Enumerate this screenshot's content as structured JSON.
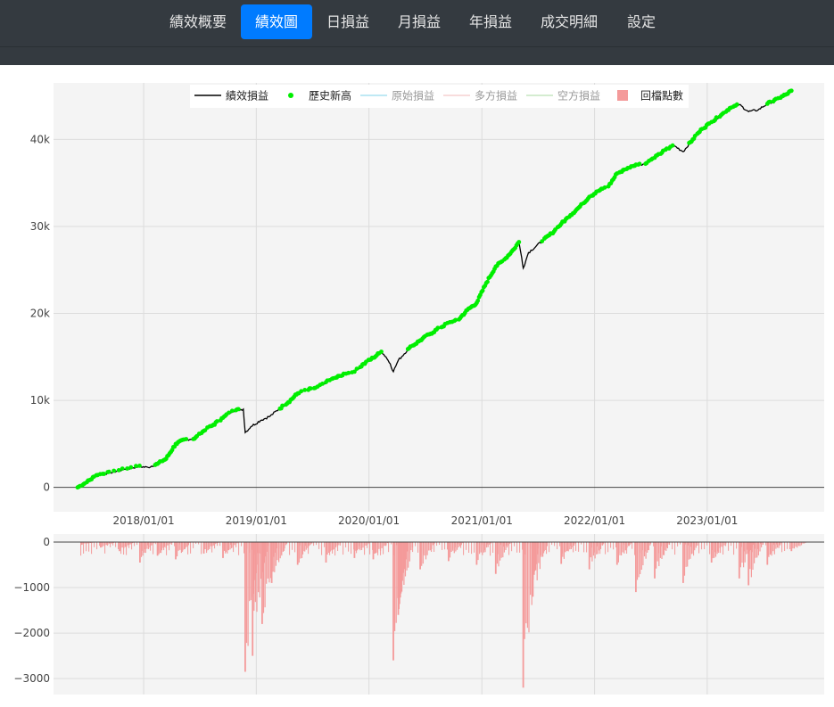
{
  "nav": {
    "tabs": [
      {
        "label": "績效概要",
        "active": false
      },
      {
        "label": "績效圖",
        "active": true
      },
      {
        "label": "日損益",
        "active": false
      },
      {
        "label": "月損益",
        "active": false
      },
      {
        "label": "年損益",
        "active": false
      },
      {
        "label": "成交明細",
        "active": false
      },
      {
        "label": "設定",
        "active": false
      }
    ]
  },
  "colors": {
    "navbar_bg": "#343a40",
    "active_tab": "#007bff",
    "plot_bg": "#f4f4f4",
    "equity_line": "#000000",
    "new_high": "#00ee00",
    "drawdown": "#f49a9a"
  },
  "chart_data": [
    {
      "type": "line",
      "legend_position": "top-center",
      "grid": true,
      "series": [
        {
          "name": "績效損益",
          "kind": "line",
          "color": "#000000",
          "enabled": true
        },
        {
          "name": "歷史新高",
          "kind": "markers",
          "color": "#00ee00",
          "enabled": true
        },
        {
          "name": "原始損益",
          "kind": "line",
          "color": "#7fd3e8",
          "enabled": false
        },
        {
          "name": "多方損益",
          "kind": "line",
          "color": "#f2b8b8",
          "enabled": false
        },
        {
          "name": "空方損益",
          "kind": "line",
          "color": "#a8d8a0",
          "enabled": false
        }
      ],
      "x_tick_labels": [
        "2018/01/01",
        "2019/01/01",
        "2020/01/01",
        "2021/01/01",
        "2022/01/01",
        "2023/01/01"
      ],
      "xlim": [
        "2017-03-15",
        "2024-01-15"
      ],
      "y_tick_labels": [
        "0",
        "10k",
        "20k",
        "30k",
        "40k"
      ],
      "ylim": [
        -2800,
        46500
      ],
      "equity": [
        [
          "2017-06-01",
          0
        ],
        [
          "2017-07-01",
          600
        ],
        [
          "2017-08-01",
          1400
        ],
        [
          "2017-09-15",
          1700
        ],
        [
          "2017-11-01",
          2100
        ],
        [
          "2017-12-15",
          2400
        ],
        [
          "2018-01-15",
          2300
        ],
        [
          "2018-02-15",
          2700
        ],
        [
          "2018-03-15",
          3300
        ],
        [
          "2018-04-15",
          5000
        ],
        [
          "2018-05-15",
          5500
        ],
        [
          "2018-06-15",
          5600
        ],
        [
          "2018-07-15",
          6500
        ],
        [
          "2018-08-15",
          7200
        ],
        [
          "2018-09-15",
          8000
        ],
        [
          "2018-10-15",
          8800
        ],
        [
          "2018-11-20",
          9000
        ],
        [
          "2018-11-26",
          6300
        ],
        [
          "2018-12-15",
          7000
        ],
        [
          "2019-01-15",
          7700
        ],
        [
          "2019-02-15",
          8200
        ],
        [
          "2019-03-15",
          9000
        ],
        [
          "2019-04-15",
          9800
        ],
        [
          "2019-05-15",
          10800
        ],
        [
          "2019-06-15",
          11200
        ],
        [
          "2019-07-15",
          11400
        ],
        [
          "2019-08-15",
          12100
        ],
        [
          "2019-09-15",
          12600
        ],
        [
          "2019-10-15",
          13000
        ],
        [
          "2019-11-15",
          13300
        ],
        [
          "2019-12-15",
          14200
        ],
        [
          "2020-01-15",
          14900
        ],
        [
          "2020-02-10",
          15600
        ],
        [
          "2020-02-25",
          15000
        ],
        [
          "2020-03-10",
          14200
        ],
        [
          "2020-03-20",
          13300
        ],
        [
          "2020-04-05",
          14600
        ],
        [
          "2020-05-10",
          16000
        ],
        [
          "2020-06-15",
          16900
        ],
        [
          "2020-07-15",
          17600
        ],
        [
          "2020-08-15",
          18300
        ],
        [
          "2020-09-15",
          18900
        ],
        [
          "2020-10-15",
          19200
        ],
        [
          "2020-11-15",
          20400
        ],
        [
          "2020-12-15",
          21200
        ],
        [
          "2021-01-15",
          23500
        ],
        [
          "2021-02-15",
          25400
        ],
        [
          "2021-03-15",
          26200
        ],
        [
          "2021-04-15",
          27400
        ],
        [
          "2021-05-01",
          28200
        ],
        [
          "2021-05-10",
          26400
        ],
        [
          "2021-05-15",
          25200
        ],
        [
          "2021-06-01",
          27000
        ],
        [
          "2021-07-15",
          28300
        ],
        [
          "2021-08-15",
          29200
        ],
        [
          "2021-09-15",
          30300
        ],
        [
          "2021-10-15",
          31300
        ],
        [
          "2021-11-15",
          32300
        ],
        [
          "2021-12-15",
          33400
        ],
        [
          "2022-01-15",
          34100
        ],
        [
          "2022-02-15",
          34600
        ],
        [
          "2022-03-15",
          36100
        ],
        [
          "2022-04-15",
          36600
        ],
        [
          "2022-05-15",
          37100
        ],
        [
          "2022-06-15",
          37200
        ],
        [
          "2022-07-15",
          37900
        ],
        [
          "2022-08-15",
          38700
        ],
        [
          "2022-09-15",
          39300
        ],
        [
          "2022-10-15",
          38600
        ],
        [
          "2022-11-15",
          40000
        ],
        [
          "2022-12-15",
          41200
        ],
        [
          "2023-01-15",
          42000
        ],
        [
          "2023-02-15",
          42800
        ],
        [
          "2023-03-15",
          43600
        ],
        [
          "2023-04-15",
          44000
        ],
        [
          "2023-05-15",
          43200
        ],
        [
          "2023-06-15",
          43400
        ],
        [
          "2023-07-15",
          44100
        ],
        [
          "2023-08-15",
          44600
        ],
        [
          "2023-09-15",
          45200
        ],
        [
          "2023-10-01",
          45600
        ]
      ]
    },
    {
      "type": "bar",
      "series": [
        {
          "name": "回檔點數",
          "color": "#f49a9a"
        }
      ],
      "x_tick_labels": [],
      "xlim": [
        "2017-03-15",
        "2024-01-15"
      ],
      "y_tick_labels": [
        "0",
        "−1000",
        "−2000",
        "−3000"
      ],
      "ylim": [
        -3350,
        0
      ],
      "drawdown": [
        [
          "2017-06-15",
          -60
        ],
        [
          "2017-08-15",
          -120
        ],
        [
          "2017-10-15",
          -200
        ],
        [
          "2017-12-20",
          -450
        ],
        [
          "2018-02-15",
          -300
        ],
        [
          "2018-04-15",
          -380
        ],
        [
          "2018-07-15",
          -250
        ],
        [
          "2018-09-15",
          -350
        ],
        [
          "2018-11-26",
          -2850
        ],
        [
          "2018-12-20",
          -2500
        ],
        [
          "2019-01-20",
          -1800
        ],
        [
          "2019-02-20",
          -900
        ],
        [
          "2019-05-15",
          -500
        ],
        [
          "2019-08-15",
          -450
        ],
        [
          "2019-11-15",
          -350
        ],
        [
          "2020-01-15",
          -380
        ],
        [
          "2020-03-20",
          -2600
        ],
        [
          "2020-04-05",
          -1600
        ],
        [
          "2020-06-15",
          -600
        ],
        [
          "2020-09-15",
          -420
        ],
        [
          "2020-12-15",
          -500
        ],
        [
          "2021-02-15",
          -700
        ],
        [
          "2021-05-15",
          -3200
        ],
        [
          "2021-06-15",
          -1200
        ],
        [
          "2021-09-15",
          -480
        ],
        [
          "2021-12-15",
          -600
        ],
        [
          "2022-03-15",
          -500
        ],
        [
          "2022-05-15",
          -1100
        ],
        [
          "2022-07-15",
          -800
        ],
        [
          "2022-10-15",
          -900
        ],
        [
          "2023-01-15",
          -450
        ],
        [
          "2023-04-15",
          -800
        ],
        [
          "2023-05-15",
          -950
        ],
        [
          "2023-07-15",
          -500
        ],
        [
          "2023-10-01",
          -200
        ]
      ]
    }
  ]
}
